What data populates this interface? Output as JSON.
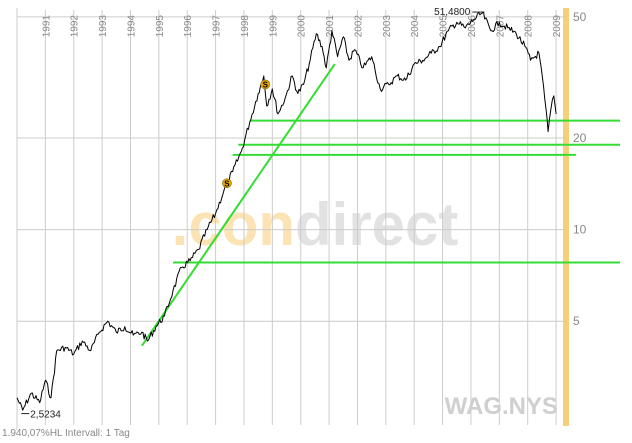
{
  "chart_data": {
    "type": "line",
    "ticker": "WAG.NYS",
    "watermark": {
      "left": ".con",
      "right": "direct"
    },
    "footer": "1.940,07%HL Intervall: 1 Tag",
    "y_scale": "log",
    "ylim": [
      2.35,
      51.5
    ],
    "y_ticks": [
      {
        "label": "50",
        "value": 50
      },
      {
        "label": "20",
        "value": 20
      },
      {
        "label": "10",
        "value": 10
      },
      {
        "label": "5",
        "value": 5
      }
    ],
    "xlim": [
      1990.0,
      2009.35
    ],
    "x_ticks": [
      "1991",
      "1992",
      "1993",
      "1994",
      "1995",
      "1996",
      "1997",
      "1998",
      "1999",
      "2000",
      "2001",
      "2002",
      "2003",
      "2004",
      "2005",
      "2006",
      "2007",
      "2008",
      "2009"
    ],
    "annotations": [
      {
        "label": "51,4800",
        "x": 2006.4,
        "y": 51.48,
        "kind": "high"
      },
      {
        "label": "2,5234",
        "x": 1990.15,
        "y": 2.5234,
        "kind": "low"
      }
    ],
    "series": [
      {
        "points": [
          [
            1990.0,
            2.8
          ],
          [
            1990.2,
            2.55
          ],
          [
            1990.5,
            2.9
          ],
          [
            1990.8,
            2.7
          ],
          [
            1991.0,
            3.2
          ],
          [
            1991.2,
            2.8
          ],
          [
            1991.4,
            4.0
          ],
          [
            1991.7,
            4.1
          ],
          [
            1992.0,
            3.9
          ],
          [
            1992.3,
            4.3
          ],
          [
            1992.6,
            4.0
          ],
          [
            1992.9,
            4.6
          ],
          [
            1993.2,
            5.0
          ],
          [
            1993.5,
            4.6
          ],
          [
            1993.8,
            4.8
          ],
          [
            1994.1,
            4.5
          ],
          [
            1994.4,
            4.6
          ],
          [
            1994.6,
            4.3
          ],
          [
            1994.9,
            4.8
          ],
          [
            1995.2,
            5.2
          ],
          [
            1995.5,
            6.3
          ],
          [
            1995.8,
            7.5
          ],
          [
            1996.1,
            7.9
          ],
          [
            1996.4,
            8.6
          ],
          [
            1996.7,
            10.0
          ],
          [
            1997.0,
            11.3
          ],
          [
            1997.3,
            13.5
          ],
          [
            1997.6,
            15.5
          ],
          [
            1997.9,
            18.0
          ],
          [
            1998.2,
            22.5
          ],
          [
            1998.5,
            28.0
          ],
          [
            1998.7,
            32.0
          ],
          [
            1998.8,
            25.5
          ],
          [
            1999.0,
            29.0
          ],
          [
            1999.2,
            24.0
          ],
          [
            1999.45,
            27.0
          ],
          [
            1999.7,
            32.0
          ],
          [
            1999.9,
            28.0
          ],
          [
            2000.1,
            30.0
          ],
          [
            2000.3,
            35.0
          ],
          [
            2000.55,
            44.0
          ],
          [
            2000.75,
            40.0
          ],
          [
            2000.9,
            34.0
          ],
          [
            2001.1,
            45.0
          ],
          [
            2001.3,
            37.0
          ],
          [
            2001.5,
            43.0
          ],
          [
            2001.7,
            36.0
          ],
          [
            2001.9,
            39.0
          ],
          [
            2002.2,
            34.0
          ],
          [
            2002.5,
            37.0
          ],
          [
            2002.8,
            29.0
          ],
          [
            2003.1,
            30.0
          ],
          [
            2003.4,
            32.0
          ],
          [
            2003.7,
            31.0
          ],
          [
            2004.0,
            35.0
          ],
          [
            2004.3,
            36.0
          ],
          [
            2004.6,
            38.0
          ],
          [
            2004.9,
            40.0
          ],
          [
            2005.2,
            45.0
          ],
          [
            2005.5,
            48.0
          ],
          [
            2005.8,
            46.0
          ],
          [
            2006.1,
            49.0
          ],
          [
            2006.4,
            51.48
          ],
          [
            2006.7,
            45.0
          ],
          [
            2007.0,
            48.0
          ],
          [
            2007.3,
            46.0
          ],
          [
            2007.6,
            44.0
          ],
          [
            2007.9,
            40.0
          ],
          [
            2008.1,
            36.0
          ],
          [
            2008.4,
            38.0
          ],
          [
            2008.6,
            27.0
          ],
          [
            2008.72,
            21.0
          ],
          [
            2008.82,
            25.0
          ],
          [
            2008.92,
            27.5
          ],
          [
            2009.0,
            24.0
          ]
        ]
      }
    ],
    "trendlines": [
      {
        "from": [
          1994.4,
          4.15
        ],
        "to": [
          2001.2,
          35.0
        ]
      }
    ],
    "horizontal_lines": [
      {
        "value": 22.8,
        "x_start": 1998.2
      },
      {
        "value": 19.0,
        "x_start": 1997.8
      },
      {
        "value": 17.6,
        "x_start": 1997.6,
        "x_end": 2009.7
      },
      {
        "value": 7.8,
        "x_start": 1995.5
      }
    ],
    "markers": [
      {
        "label": "S",
        "x": 1998.75,
        "y": 30.0
      },
      {
        "label": "S",
        "x": 1997.4,
        "y": 14.2
      }
    ],
    "highlight_x": 2009.35,
    "colors": {
      "price": "#000000",
      "support": "#33dd33",
      "grid": "#cccccc",
      "highlight": "#f5c860",
      "marker": "#e8a800"
    },
    "grid": true
  }
}
